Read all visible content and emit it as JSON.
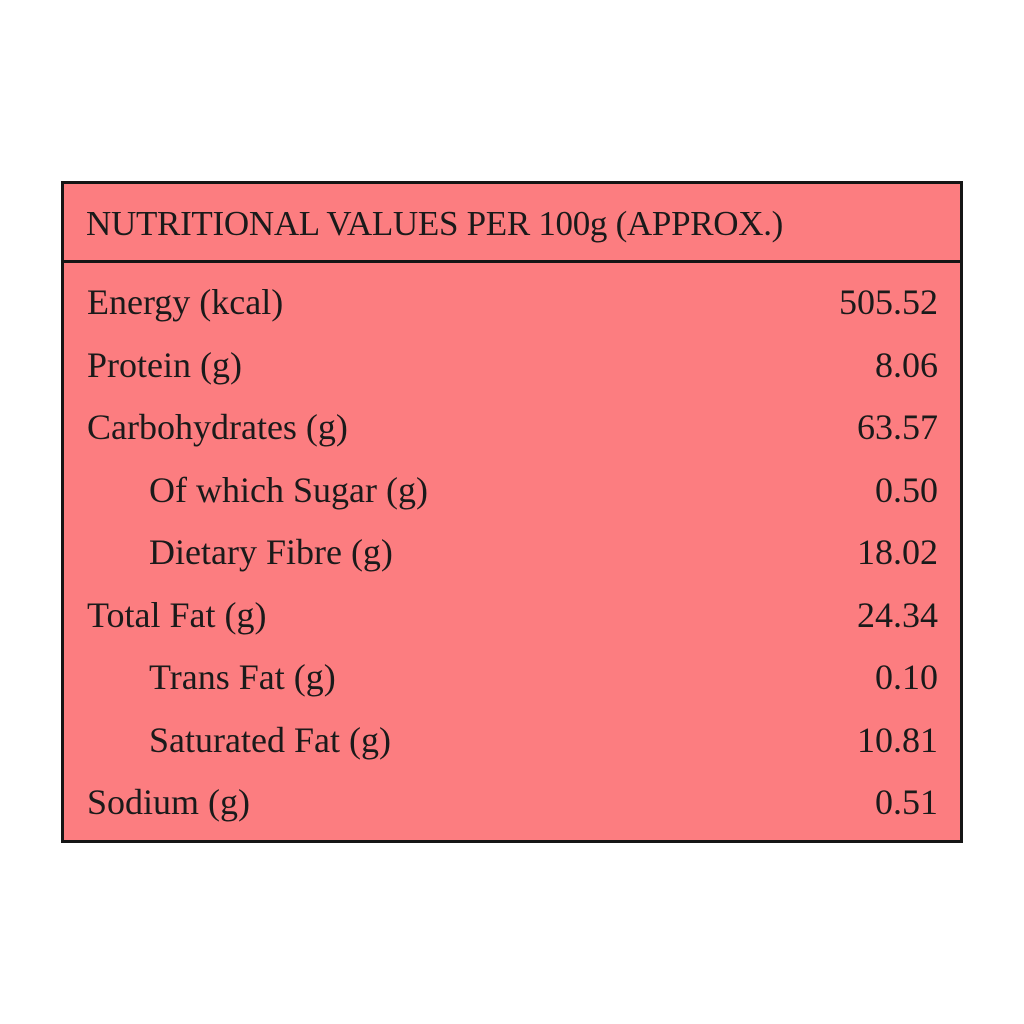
{
  "table": {
    "title": "NUTRITIONAL VALUES PER 100g (APPROX.)",
    "rows": [
      {
        "label": "Energy (kcal)",
        "value": "505.52"
      },
      {
        "label": "Protein (g)",
        "value": "8.06"
      },
      {
        "label": "Carbohydrates (g)",
        "value": "63.57",
        "sub_rows": [
          {
            "label": "Of which Sugar (g)",
            "value": "0.50"
          },
          {
            "label": "Dietary Fibre (g)",
            "value": "18.02"
          }
        ]
      },
      {
        "label": "Total Fat (g)",
        "value": "24.34",
        "sub_rows": [
          {
            "label": "Trans Fat (g)",
            "value": "0.10"
          },
          {
            "label": "Saturated Fat (g)",
            "value": "10.81"
          }
        ]
      },
      {
        "label": "Sodium (g)",
        "value": "0.51"
      }
    ]
  }
}
